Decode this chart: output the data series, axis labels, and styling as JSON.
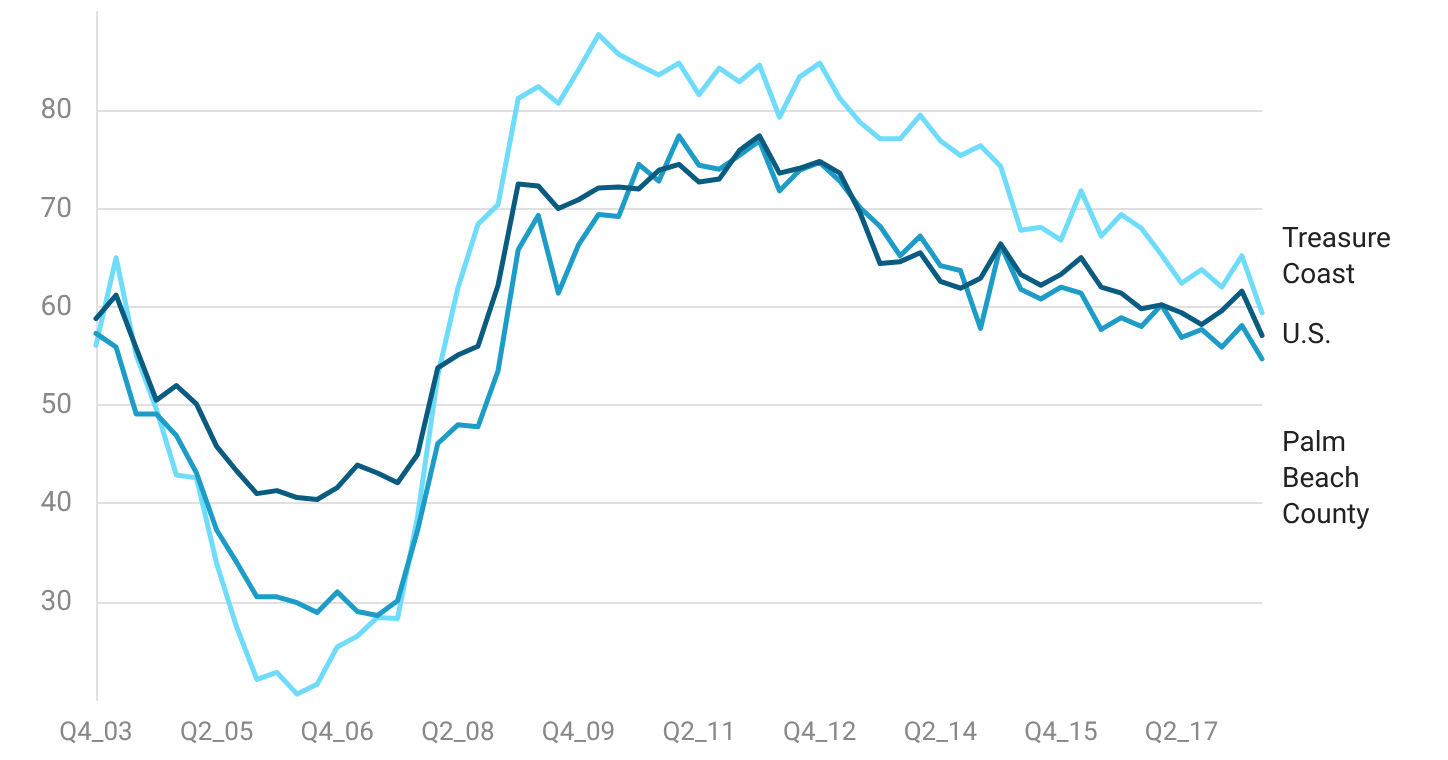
{
  "chart_data": {
    "type": "line",
    "categories": [
      "Q4_03",
      null,
      null,
      null,
      null,
      null,
      "Q2_05",
      null,
      null,
      null,
      null,
      null,
      "Q4_06",
      null,
      null,
      null,
      null,
      null,
      "Q2_08",
      null,
      null,
      null,
      null,
      null,
      "Q4_09",
      null,
      null,
      null,
      null,
      null,
      "Q2_11",
      null,
      null,
      null,
      null,
      null,
      "Q4_12",
      null,
      null,
      null,
      null,
      null,
      "Q2_14",
      null,
      null,
      null,
      null,
      null,
      "Q4_15",
      null,
      null,
      null,
      null,
      null,
      "Q2_17",
      null,
      null,
      null,
      null
    ],
    "series": [
      {
        "name": "Treasure Coast",
        "color": "#6edcfa",
        "values": [
          56.1,
          65.0,
          55.1,
          49.6,
          42.9,
          42.6,
          33.9,
          27.4,
          22.1,
          22.8,
          20.6,
          21.6,
          25.4,
          26.5,
          28.4,
          28.3,
          38.7,
          53.0,
          61.9,
          68.4,
          70.4,
          81.2,
          82.4,
          80.7,
          84.1,
          87.7,
          85.7,
          84.6,
          83.6,
          84.8,
          81.6,
          84.3,
          82.9,
          84.6,
          79.3,
          83.4,
          84.8,
          81.2,
          78.8,
          77.1,
          77.1,
          79.5,
          76.9,
          75.4,
          76.4,
          74.3,
          67.8,
          68.1,
          66.8,
          71.8,
          67.2,
          69.4,
          68.0,
          65.3,
          62.4,
          63.8,
          62.0,
          65.2,
          59.4
        ]
      },
      {
        "name": "Palm Beach County",
        "color": "#1d9cc7",
        "values": [
          57.3,
          55.9,
          49.1,
          49.1,
          46.9,
          43.1,
          37.3,
          34.0,
          30.5,
          30.5,
          29.9,
          28.9,
          31.0,
          29.0,
          28.6,
          30.1,
          37.3,
          46.1,
          48.0,
          47.8,
          53.5,
          65.8,
          69.3,
          61.4,
          66.3,
          69.4,
          69.2,
          74.5,
          72.8,
          77.4,
          74.4,
          74.0,
          75.4,
          76.9,
          71.8,
          73.9,
          74.7,
          72.8,
          70.1,
          68.2,
          65.2,
          67.2,
          64.2,
          63.7,
          57.8,
          66.3,
          61.8,
          60.8,
          62.0,
          61.4,
          57.7,
          58.9,
          58.0,
          60.2,
          56.9,
          57.7,
          55.9,
          58.1,
          54.7
        ]
      },
      {
        "name": "U.S.",
        "color": "#0a5b80",
        "values": [
          58.8,
          61.2,
          55.8,
          50.5,
          52.0,
          50.1,
          45.8,
          43.3,
          41.0,
          41.3,
          40.6,
          40.4,
          41.6,
          43.9,
          43.1,
          42.1,
          45.0,
          53.8,
          55.1,
          56.0,
          62.2,
          72.5,
          72.3,
          70.0,
          70.9,
          72.1,
          72.2,
          72.0,
          73.9,
          74.5,
          72.7,
          73.0,
          75.9,
          77.4,
          73.6,
          74.1,
          74.8,
          73.6,
          69.6,
          64.4,
          64.6,
          65.5,
          62.6,
          61.9,
          62.9,
          66.4,
          63.3,
          62.2,
          63.3,
          65.0,
          62.0,
          61.4,
          59.8,
          60.2,
          59.4,
          58.2,
          59.6,
          61.6,
          57.1
        ]
      }
    ],
    "ylim": [
      20,
      90
    ],
    "yticks": [
      30,
      40,
      50,
      60,
      70,
      80
    ],
    "grid": "y",
    "legend": "right",
    "marker": "none",
    "line_style": "solid"
  }
}
